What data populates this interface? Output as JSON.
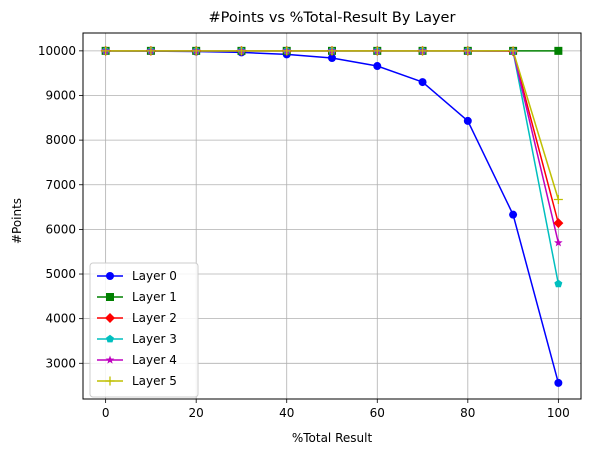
{
  "chart_data": {
    "type": "line",
    "title": "#Points vs %Total-Result By Layer",
    "xlabel": "%Total Result",
    "ylabel": "#Points",
    "x": [
      0,
      10,
      20,
      30,
      40,
      50,
      60,
      70,
      80,
      90,
      100
    ],
    "xlim": [
      -5,
      105
    ],
    "ylim": [
      2200,
      10400
    ],
    "xticks": [
      0,
      20,
      40,
      60,
      80,
      100
    ],
    "yticks": [
      3000,
      4000,
      5000,
      6000,
      7000,
      8000,
      9000,
      10000
    ],
    "grid": true,
    "legend_position": "lower-left",
    "series": [
      {
        "name": "Layer 0",
        "color": "#0000ff",
        "marker": "circle",
        "values": [
          10000,
          9995,
          9985,
          9965,
          9920,
          9840,
          9660,
          9300,
          8430,
          6330,
          2560
        ]
      },
      {
        "name": "Layer 1",
        "color": "#008000",
        "marker": "square",
        "values": [
          10000,
          10000,
          10000,
          10000,
          10000,
          10000,
          10000,
          10000,
          10000,
          10000,
          10000
        ]
      },
      {
        "name": "Layer 2",
        "color": "#ff0000",
        "marker": "diamond",
        "values": [
          10000,
          10000,
          10000,
          10000,
          10000,
          10000,
          10000,
          10000,
          10000,
          9990,
          6140
        ]
      },
      {
        "name": "Layer 3",
        "color": "#00bfbf",
        "marker": "pentagon",
        "values": [
          10000,
          10000,
          10000,
          10000,
          10000,
          10000,
          10000,
          10000,
          10000,
          9990,
          4780
        ]
      },
      {
        "name": "Layer 4",
        "color": "#bf00bf",
        "marker": "star",
        "values": [
          10000,
          10000,
          10000,
          10000,
          10000,
          10000,
          10000,
          10000,
          10000,
          9990,
          5700
        ]
      },
      {
        "name": "Layer 5",
        "color": "#bfbf00",
        "marker": "plus",
        "values": [
          10000,
          10000,
          10000,
          10000,
          10000,
          10000,
          10000,
          10000,
          10000,
          10000,
          6670
        ]
      }
    ]
  }
}
